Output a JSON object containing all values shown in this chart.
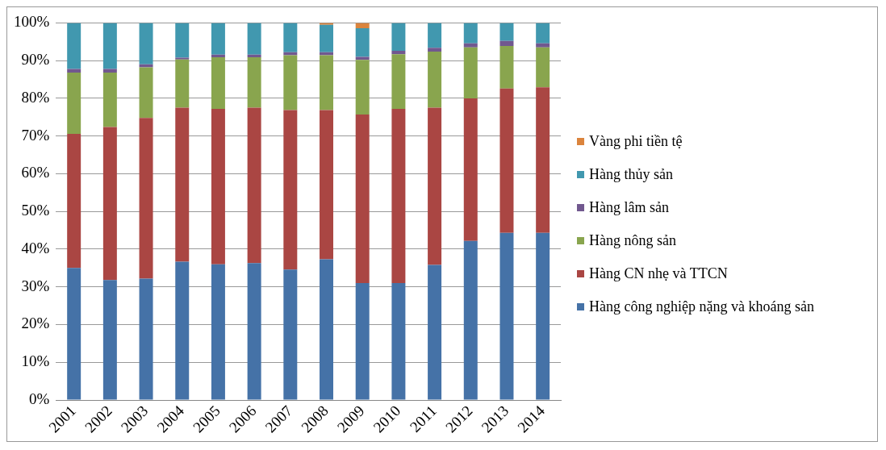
{
  "chart_data": {
    "type": "bar",
    "stacked": true,
    "categories": [
      "2001",
      "2002",
      "2003",
      "2004",
      "2005",
      "2006",
      "2007",
      "2008",
      "2009",
      "2010",
      "2011",
      "2012",
      "2013",
      "2014"
    ],
    "series": [
      {
        "name": "Hàng công nghiệp nặng và khoáng sản",
        "color": "#4572a7",
        "values": [
          35,
          31.8,
          32.2,
          36.7,
          36,
          36.3,
          34.6,
          37.3,
          31,
          31,
          35.8,
          42.2,
          44.3,
          44.3
        ]
      },
      {
        "name": "Hàng CN nhẹ và TTCN",
        "color": "#aa4643",
        "values": [
          35.6,
          40.6,
          42.6,
          40.8,
          41.2,
          41.2,
          42.3,
          39.6,
          44.7,
          46.2,
          41.7,
          37.8,
          38.3,
          38.6
        ]
      },
      {
        "name": "Hàng nông sản",
        "color": "#89a54e",
        "values": [
          16.2,
          14.4,
          13.4,
          12.8,
          13.7,
          13.4,
          14.5,
          14.5,
          14.5,
          14.5,
          14.9,
          13.5,
          11.3,
          10.6
        ]
      },
      {
        "name": "Hàng lâm sản",
        "color": "#71588f",
        "values": [
          1,
          1,
          0.8,
          0.5,
          0.7,
          0.7,
          0.8,
          0.8,
          0.8,
          0.9,
          1,
          1.1,
          1.3,
          1.1
        ]
      },
      {
        "name": "Hàng thủy sản",
        "color": "#4198af",
        "values": [
          12.2,
          12.2,
          11,
          9.2,
          8.4,
          8.4,
          7.8,
          7.3,
          7.6,
          7.4,
          6.6,
          5.4,
          4.8,
          5.4
        ]
      },
      {
        "name": "Vàng phi tiền tệ",
        "color": "#db843d",
        "values": [
          0,
          0,
          0,
          0,
          0,
          0,
          0,
          0.5,
          1.4,
          0,
          0,
          0,
          0,
          0
        ]
      }
    ],
    "ylim": [
      0,
      100
    ],
    "yticks": [
      {
        "value": 0,
        "label": "0%"
      },
      {
        "value": 10,
        "label": "10%"
      },
      {
        "value": 20,
        "label": "20%"
      },
      {
        "value": 30,
        "label": "30%"
      },
      {
        "value": 40,
        "label": "40%"
      },
      {
        "value": 50,
        "label": "50%"
      },
      {
        "value": 60,
        "label": "60%"
      },
      {
        "value": 70,
        "label": "70%"
      },
      {
        "value": 80,
        "label": "80%"
      },
      {
        "value": 90,
        "label": "90%"
      },
      {
        "value": 100,
        "label": "100%"
      }
    ],
    "grid": "y",
    "legend": "right"
  }
}
